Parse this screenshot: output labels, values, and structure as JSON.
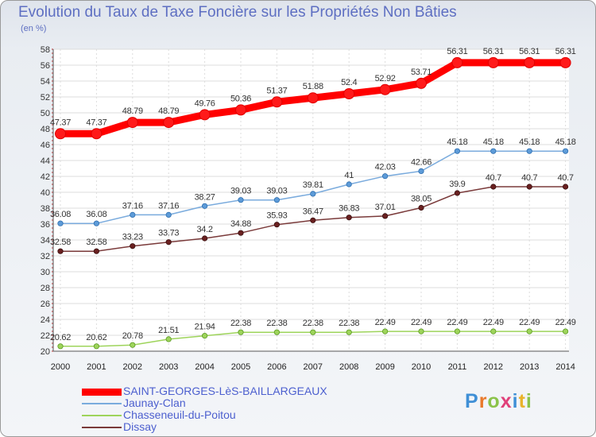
{
  "header": {
    "title": "Evolution du Taux de Taxe Foncière sur les Propriétés Non Bâties",
    "subtitle": "(en %)"
  },
  "logo": {
    "text": "Proxiti",
    "letters": [
      {
        "ch": "P",
        "color": "#3f8fd6"
      },
      {
        "ch": "r",
        "color": "#e9792b"
      },
      {
        "ch": "o",
        "color": "#8bc34a"
      },
      {
        "ch": "x",
        "color": "#e0407a"
      },
      {
        "ch": "i",
        "color": "#3f8fd6"
      },
      {
        "ch": "t",
        "color": "#e9b32b"
      },
      {
        "ch": "i",
        "color": "#8bc34a"
      }
    ]
  },
  "chart_data": {
    "type": "line",
    "title": "Evolution du Taux de Taxe Foncière sur les Propriétés Non Bâties",
    "ylabel": "(en %)",
    "x": [
      "2000",
      "2001",
      "2002",
      "2003",
      "2004",
      "2005",
      "2006",
      "2007",
      "2008",
      "2009",
      "2010",
      "2011",
      "2012",
      "2013",
      "2014"
    ],
    "ylim": [
      20,
      58
    ],
    "yticks": [
      "20",
      "22",
      "24",
      "26",
      "28",
      "30",
      "32",
      "34",
      "36",
      "38",
      "40",
      "42",
      "44",
      "46",
      "48",
      "50",
      "52",
      "54",
      "56",
      "58"
    ],
    "grid": true,
    "legend_position": "bottom-left",
    "series": [
      {
        "name": "SAINT-GEORGES-LèS-BAILLARGEAUX",
        "color": "#ff0000",
        "values": [
          47.37,
          47.37,
          48.79,
          48.79,
          49.76,
          50.36,
          51.37,
          51.88,
          52.4,
          52.92,
          53.71,
          56.31,
          56.31,
          56.31,
          56.31
        ],
        "labels": [
          "47.37",
          "47.37",
          "48.79",
          "48.79",
          "49.76",
          "50.36",
          "51.37",
          "51.88",
          "52.4",
          "52.92",
          "53.71",
          "56.31",
          "56.31",
          "56.31",
          "56.31"
        ]
      },
      {
        "name": "Jaunay-Clan",
        "color": "#7aabdd",
        "values": [
          36.08,
          36.08,
          37.16,
          37.16,
          38.27,
          39.03,
          39.03,
          39.81,
          41,
          42.03,
          42.66,
          45.18,
          45.18,
          45.18,
          45.18
        ],
        "labels": [
          "36.08",
          "36.08",
          "37.16",
          "37.16",
          "38.27",
          "39.03",
          "39.03",
          "39.81",
          "41",
          "42.03",
          "42.66",
          "45.18",
          "45.18",
          "45.18",
          "45.18"
        ]
      },
      {
        "name": "Chasseneuil-du-Poitou",
        "color": "#9ed45b",
        "values": [
          20.62,
          20.62,
          20.78,
          21.51,
          21.94,
          22.38,
          22.38,
          22.38,
          22.38,
          22.49,
          22.49,
          22.49,
          22.49,
          22.49,
          22.49
        ],
        "labels": [
          "20.62",
          "20.62",
          "20.78",
          "21.51",
          "21.94",
          "22.38",
          "22.38",
          "22.38",
          "22.38",
          "22.49",
          "22.49",
          "22.49",
          "22.49",
          "22.49",
          "22.49"
        ]
      },
      {
        "name": "Dissay",
        "color": "#7a3a3a",
        "values": [
          32.58,
          32.58,
          33.23,
          33.73,
          34.2,
          34.88,
          35.93,
          36.47,
          36.83,
          37.01,
          38.05,
          39.9,
          40.7,
          40.7,
          40.7
        ],
        "labels": [
          "32.58",
          "32.58",
          "33.23",
          "33.73",
          "34.2",
          "34.88",
          "35.93",
          "36.47",
          "36.83",
          "37.01",
          "38.05",
          "39.9",
          "40.7",
          "40.7",
          "40.7"
        ]
      }
    ]
  }
}
